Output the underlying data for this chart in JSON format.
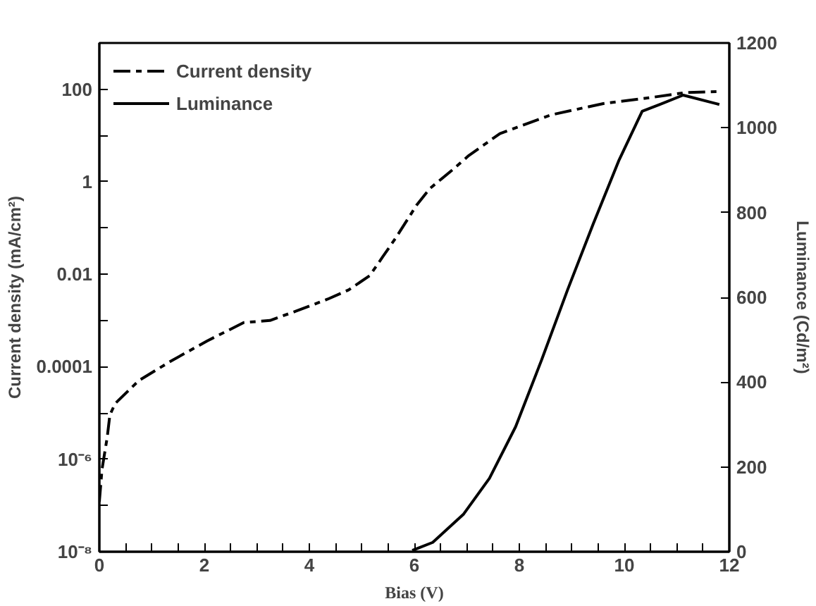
{
  "chart_data": {
    "type": "line",
    "xlabel": "Bias (V)",
    "ylabel": "Current density (mA/cm²)",
    "y2label": "Luminance (Cd/m²)",
    "log": "y",
    "legend": "top left",
    "marker": "none",
    "xlim": [
      0,
      12
    ],
    "xticks": [
      0,
      {
        "value": 0.5,
        "label": null
      },
      {
        "value": 1,
        "label": null
      },
      {
        "value": 1.5,
        "label": null
      },
      2,
      {
        "value": 2.5,
        "label": null
      },
      {
        "value": 3,
        "label": null
      },
      {
        "value": 3.5,
        "label": null
      },
      4,
      {
        "value": 4.5,
        "label": null
      },
      {
        "value": 5,
        "label": null
      },
      {
        "value": 5.5,
        "label": null
      },
      6,
      {
        "value": 6.5,
        "label": null
      },
      {
        "value": 7,
        "label": null
      },
      {
        "value": 7.5,
        "label": null
      },
      8,
      {
        "value": 8.5,
        "label": null
      },
      {
        "value": 9,
        "label": null
      },
      {
        "value": 9.5,
        "label": null
      },
      10,
      {
        "value": 10.5,
        "label": null
      },
      {
        "value": 11,
        "label": null
      },
      {
        "value": 11.5,
        "label": null
      },
      12
    ],
    "ylim": [
      1e-08,
      1000
    ],
    "yticks": [
      {
        "value": 1e-08,
        "label": "10⁻⁸"
      },
      {
        "value": 1e-07,
        "label": null
      },
      {
        "value": 1e-06,
        "label": "10⁻⁶"
      },
      {
        "value": 1e-05,
        "label": null
      },
      0.0001,
      {
        "value": 0.001,
        "label": null
      },
      0.01,
      {
        "value": 0.1,
        "label": null
      },
      1,
      {
        "value": 10,
        "label": null
      },
      100,
      {
        "value": 1000,
        "label": null
      }
    ],
    "y2lim": [
      0,
      1200
    ],
    "y2ticks": [
      0,
      200,
      400,
      600,
      800,
      1000,
      1200
    ],
    "series": [
      {
        "name": "Current density",
        "color": "#000000",
        "line_style": "dashed",
        "x": [
          0,
          0.05,
          0.15,
          0.2,
          0.3,
          0.75,
          1.35,
          2.05,
          2.75,
          3.25,
          3.75,
          4.35,
          4.75,
          5.15,
          5.4,
          5.65,
          6.05,
          6.3,
          6.75,
          7.04,
          7.63,
          8.61,
          9.6,
          10.58,
          11.17,
          11.81
        ],
        "values": [
          1.2e-07,
          6e-07,
          3e-06,
          9e-06,
          1.6e-05,
          5e-05,
          0.00013,
          0.00036,
          0.0009,
          0.001,
          0.0016,
          0.0029,
          0.0046,
          0.0093,
          0.024,
          0.062,
          0.32,
          0.72,
          1.9,
          3.7,
          11,
          28,
          49,
          68,
          85,
          89
        ]
      },
      {
        "name": "Luminance",
        "color": "#000000",
        "line_style": "solid",
        "axis": "y2",
        "x": [
          5.96,
          6.35,
          6.94,
          7.43,
          7.93,
          8.42,
          8.92,
          9.41,
          9.9,
          10.34,
          10.68,
          11.12,
          11.81
        ],
        "values": [
          3,
          22,
          89,
          173,
          295,
          451,
          618,
          774,
          924,
          1039,
          1055,
          1077,
          1055
        ]
      }
    ]
  }
}
